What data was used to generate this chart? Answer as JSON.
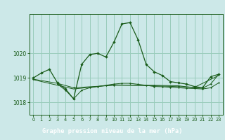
{
  "title": "Graphe pression niveau de la mer (hPa)",
  "background_color": "#cce8e8",
  "plot_bg": "#cce8e8",
  "grid_color": "#99ccbb",
  "line_color": "#1a5c1a",
  "label_bg": "#2d6b2d",
  "label_fg": "#ffffff",
  "xlim": [
    -0.5,
    23.5
  ],
  "ylim": [
    1017.5,
    1021.6
  ],
  "yticks": [
    1018,
    1019,
    1020
  ],
  "xticks": [
    0,
    1,
    2,
    3,
    4,
    5,
    6,
    7,
    8,
    9,
    10,
    11,
    12,
    13,
    14,
    15,
    16,
    17,
    18,
    19,
    20,
    21,
    22,
    23
  ],
  "series1": [
    [
      0,
      1019.0
    ],
    [
      1,
      1019.2
    ],
    [
      2,
      1019.35
    ],
    [
      3,
      1018.8
    ],
    [
      4,
      1018.55
    ],
    [
      5,
      1018.15
    ],
    [
      6,
      1019.55
    ],
    [
      7,
      1019.95
    ],
    [
      8,
      1020.0
    ],
    [
      9,
      1019.85
    ],
    [
      10,
      1020.45
    ],
    [
      11,
      1021.2
    ],
    [
      12,
      1021.25
    ],
    [
      13,
      1020.55
    ],
    [
      14,
      1019.55
    ],
    [
      15,
      1019.25
    ],
    [
      16,
      1019.1
    ],
    [
      17,
      1018.85
    ],
    [
      18,
      1018.8
    ],
    [
      19,
      1018.75
    ],
    [
      20,
      1018.65
    ],
    [
      21,
      1018.6
    ],
    [
      22,
      1019.05
    ],
    [
      23,
      1019.15
    ]
  ],
  "series2": [
    [
      3,
      1018.75
    ],
    [
      4,
      1018.5
    ],
    [
      5,
      1018.15
    ],
    [
      6,
      1018.5
    ],
    [
      7,
      1018.6
    ],
    [
      8,
      1018.65
    ],
    [
      9,
      1018.7
    ],
    [
      10,
      1018.75
    ],
    [
      11,
      1018.78
    ],
    [
      12,
      1018.78
    ],
    [
      13,
      1018.74
    ],
    [
      14,
      1018.7
    ],
    [
      15,
      1018.65
    ],
    [
      16,
      1018.64
    ],
    [
      17,
      1018.62
    ],
    [
      18,
      1018.6
    ],
    [
      19,
      1018.58
    ],
    [
      20,
      1018.57
    ],
    [
      21,
      1018.55
    ],
    [
      22,
      1018.6
    ],
    [
      23,
      1018.8
    ]
  ],
  "series3": [
    [
      0,
      1018.95
    ],
    [
      3,
      1018.78
    ],
    [
      5,
      1018.6
    ],
    [
      10,
      1018.7
    ],
    [
      15,
      1018.7
    ],
    [
      18,
      1018.68
    ],
    [
      20,
      1018.6
    ],
    [
      21,
      1018.58
    ],
    [
      22,
      1018.75
    ],
    [
      23,
      1019.15
    ]
  ],
  "series4": [
    [
      0,
      1018.93
    ],
    [
      5,
      1018.55
    ],
    [
      10,
      1018.72
    ],
    [
      15,
      1018.68
    ],
    [
      20,
      1018.62
    ],
    [
      23,
      1019.1
    ]
  ]
}
